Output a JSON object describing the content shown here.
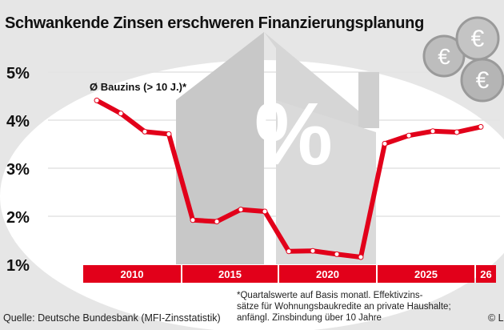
{
  "title": "Schwankende Zinsen erschweren Finanzierungsplanung",
  "footer": {
    "source": "Quelle: Deutsche Bundesbank (MFI-Zinsstatistik)",
    "footnote": [
      "*Quartalswerte auf Basis monatl. Effektivzins-",
      "sätze für Wohnungsbaukredite an private Haushalte;",
      "anfängl. Zinsbindung über 10 Jahre"
    ],
    "copyright": "© L"
  },
  "colors": {
    "line": "#e2001a",
    "axis_band": "#e2001a",
    "background": "#e6e6e6",
    "house": "#c4c4c4"
  },
  "icons": [
    "euro-coin-icon",
    "house-percent-icon"
  ],
  "chart_data": {
    "type": "line",
    "title": "Schwankende Zinsen erschweren Finanzierungsplanung",
    "series": [
      {
        "name": "Ø Bauzins (> 10 J.)*",
        "x": [
          2010,
          2011,
          2012,
          2013,
          2014,
          2015,
          2016,
          2017,
          2018,
          2019,
          2020,
          2021,
          2022,
          2023,
          2024,
          2025,
          2026
        ],
        "values": [
          4.41,
          4.14,
          3.76,
          3.71,
          1.92,
          1.89,
          2.14,
          2.1,
          1.27,
          1.28,
          1.21,
          1.15,
          3.51,
          3.68,
          3.77,
          3.75,
          3.86
        ]
      }
    ],
    "xlim": [
      2010,
      2026
    ],
    "ylim": [
      1,
      5
    ],
    "y_ticks": [
      "1%",
      "2%",
      "3%",
      "4%",
      "5%"
    ],
    "x_tick_labels": [
      {
        "year": 2010,
        "label": "2010"
      },
      {
        "year": 2015,
        "label": "2015"
      },
      {
        "year": 2020,
        "label": "2020"
      },
      {
        "year": 2025,
        "label": "2025"
      },
      {
        "year": 2026,
        "label": "26"
      }
    ],
    "grid": true,
    "legend": "top-left"
  }
}
